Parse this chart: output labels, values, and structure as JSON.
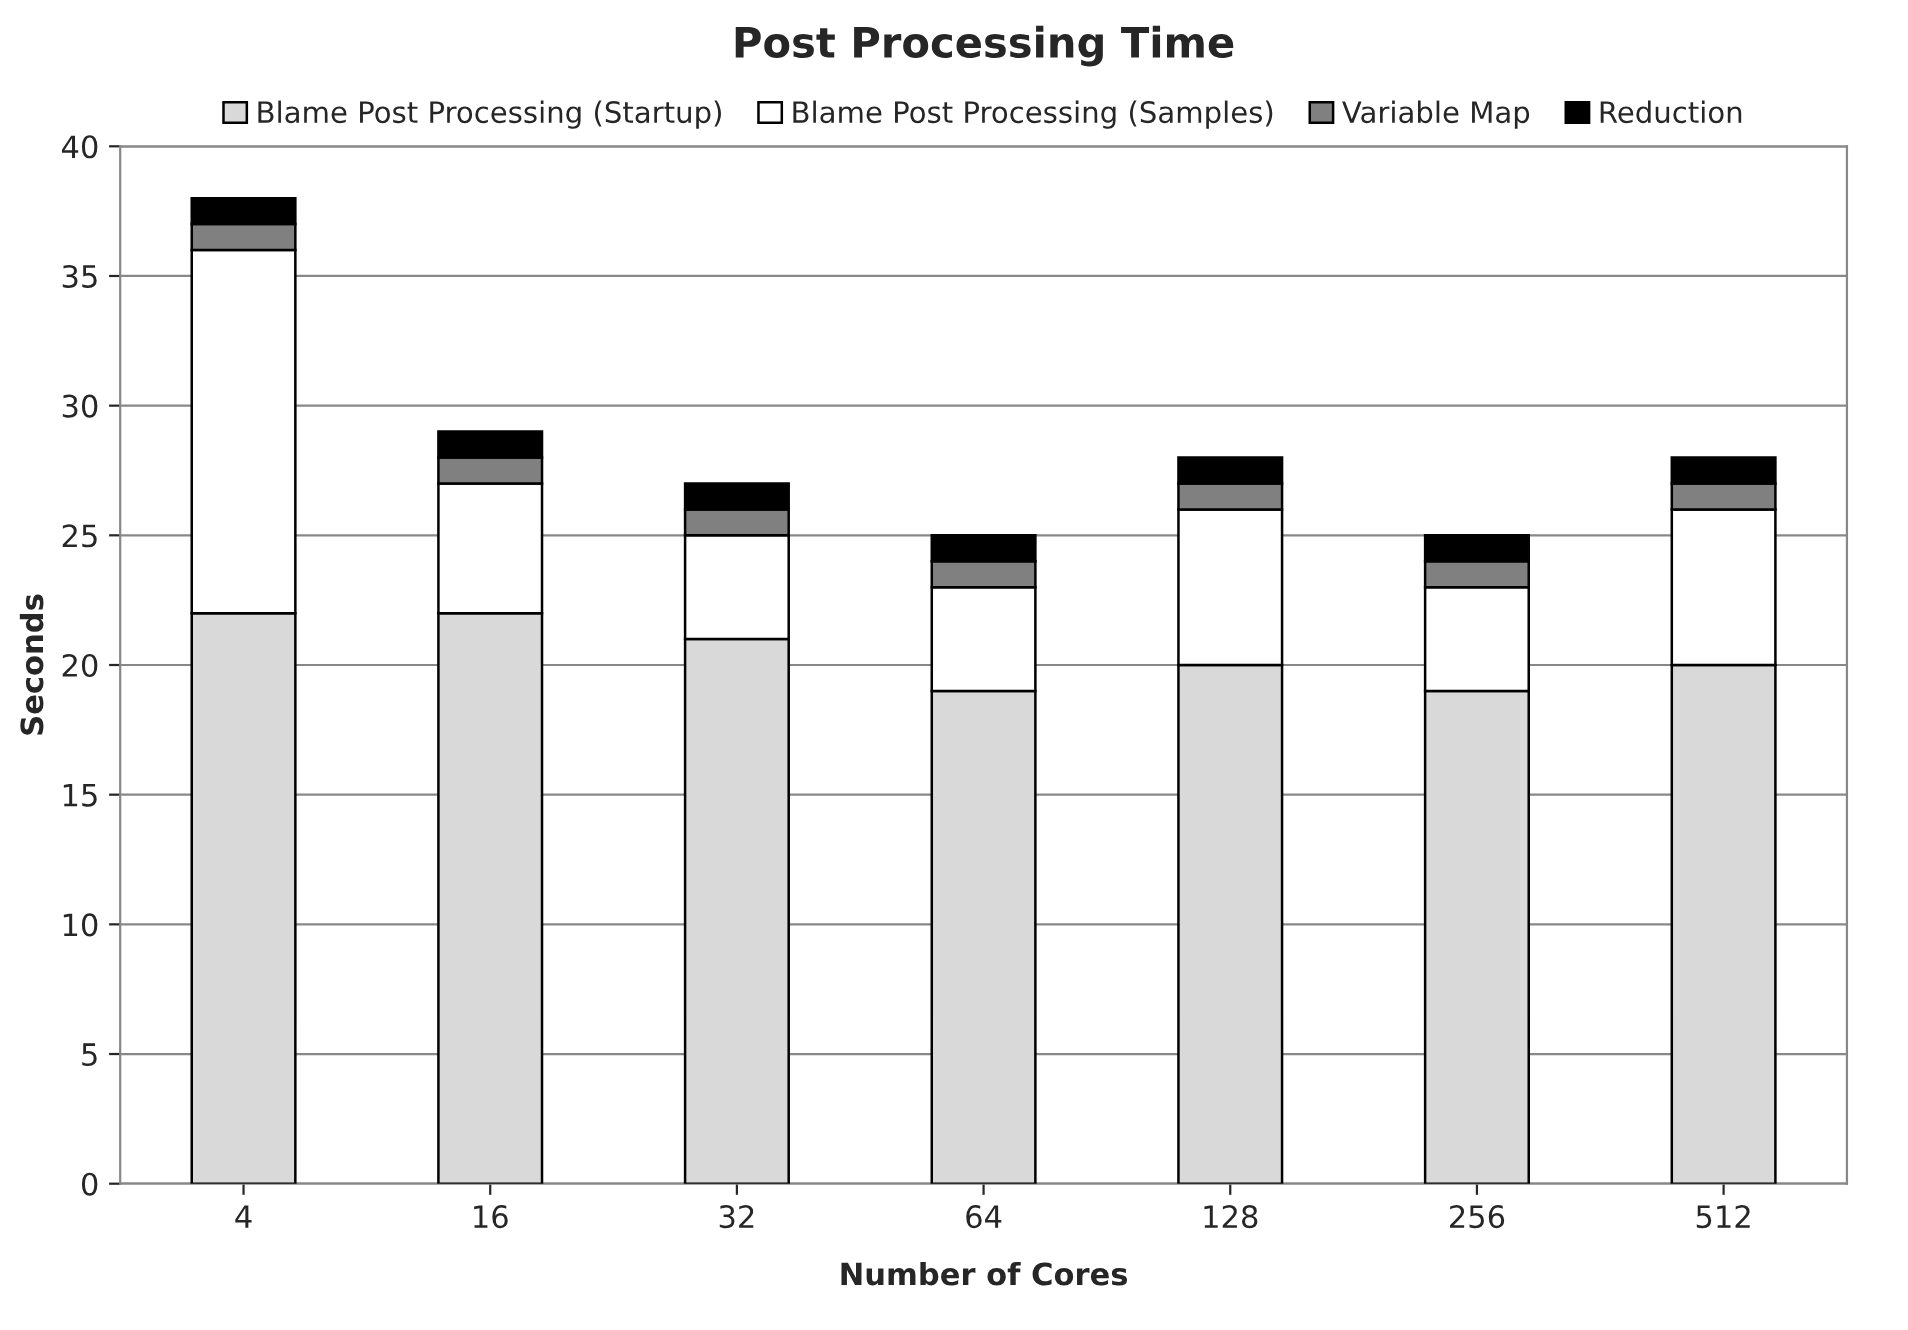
{
  "chart_data": {
    "type": "bar",
    "title": "Post Processing Time",
    "xlabel": "Number of Cores",
    "ylabel": "Seconds",
    "categories": [
      "4",
      "16",
      "32",
      "64",
      "128",
      "256",
      "512"
    ],
    "stacked": true,
    "series": [
      {
        "name": "Blame Post Processing (Startup)",
        "color": "#d9d9d9",
        "values": [
          22,
          22,
          21,
          19,
          20,
          19,
          20
        ]
      },
      {
        "name": "Blame Post Processing (Samples)",
        "color": "#ffffff",
        "values": [
          14,
          5,
          4,
          4,
          6,
          4,
          6
        ]
      },
      {
        "name": "Variable Map",
        "color": "#808080",
        "values": [
          1,
          1,
          1,
          1,
          1,
          1,
          1
        ]
      },
      {
        "name": "Reduction",
        "color": "#000000",
        "values": [
          1,
          1,
          1,
          1,
          1,
          1,
          1
        ]
      }
    ],
    "ylim": [
      0,
      40
    ],
    "yticks": [
      0,
      5,
      10,
      15,
      20,
      25,
      30,
      35,
      40
    ],
    "grid": "y",
    "legend": "top"
  }
}
